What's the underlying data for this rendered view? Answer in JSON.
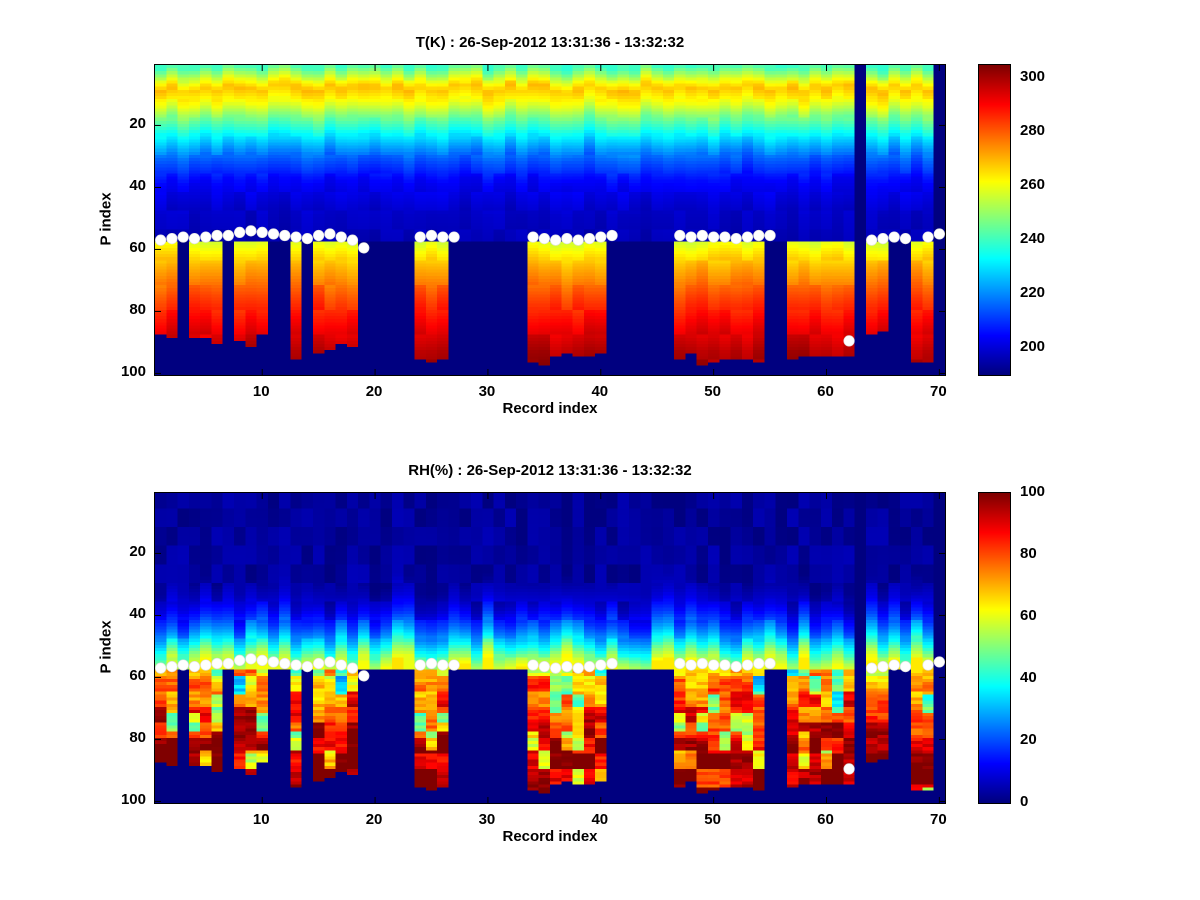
{
  "colors": {
    "dot": "#ffffff",
    "axis": "#000000",
    "background": "#ffffff",
    "masked": "#00007f"
  },
  "chart_data": [
    {
      "type": "heatmap",
      "title": "T(K) : 26-Sep-2012 13:31:36 - 13:32:32",
      "xlabel": "Record index",
      "ylabel": "P index",
      "x_range": [
        1,
        70
      ],
      "y_range": [
        1,
        100
      ],
      "x_ticks": [
        10,
        20,
        30,
        40,
        50,
        60,
        70
      ],
      "y_ticks": [
        20,
        40,
        60,
        80,
        100
      ],
      "y_axis_reversed": true,
      "colormap": "jet",
      "colorbar": {
        "min": 190,
        "max": 305,
        "ticks": [
          200,
          220,
          240,
          260,
          280,
          300
        ]
      },
      "boundary_p": 57,
      "upper_profile": [
        [
          1,
          240
        ],
        [
          5,
          258
        ],
        [
          8,
          269
        ],
        [
          13,
          260
        ],
        [
          18,
          245
        ],
        [
          24,
          230
        ],
        [
          30,
          216
        ],
        [
          38,
          204
        ],
        [
          48,
          198
        ],
        [
          57,
          196
        ]
      ],
      "lower_profile": [
        [
          58,
          259
        ],
        [
          65,
          270
        ],
        [
          75,
          282
        ],
        [
          85,
          292
        ],
        [
          93,
          299
        ],
        [
          97,
          301
        ]
      ],
      "segments": [
        {
          "start": 1,
          "end": 2,
          "bottom": 88
        },
        {
          "start": 4,
          "end": 6,
          "bottom": 90
        },
        {
          "start": 8,
          "end": 10,
          "bottom": 89
        },
        {
          "start": 13,
          "end": 13,
          "bottom": 95
        },
        {
          "start": 15,
          "end": 18,
          "bottom": 92
        },
        {
          "start": 24,
          "end": 26,
          "bottom": 95
        },
        {
          "start": 34,
          "end": 40,
          "bottom": 95
        },
        {
          "start": 47,
          "end": 54,
          "bottom": 95
        },
        {
          "start": 57,
          "end": 62,
          "bottom": 95
        },
        {
          "start": 64,
          "end": 65,
          "bottom": 86
        },
        {
          "start": 68,
          "end": 69,
          "bottom": 95
        }
      ],
      "missing_records": [
        63,
        70
      ],
      "dots": [
        [
          1,
          57
        ],
        [
          2,
          56.5
        ],
        [
          3,
          56
        ],
        [
          4,
          56.5
        ],
        [
          5,
          56
        ],
        [
          6,
          55.5
        ],
        [
          7,
          55.5
        ],
        [
          8,
          54.5
        ],
        [
          9,
          54
        ],
        [
          10,
          54.5
        ],
        [
          11,
          55
        ],
        [
          12,
          55.5
        ],
        [
          13,
          56
        ],
        [
          14,
          56.5
        ],
        [
          15,
          55.5
        ],
        [
          16,
          55
        ],
        [
          17,
          56
        ],
        [
          18,
          57
        ],
        [
          19,
          59.5
        ],
        [
          24,
          56
        ],
        [
          25,
          55.5
        ],
        [
          26,
          56
        ],
        [
          27,
          56
        ],
        [
          34,
          56
        ],
        [
          35,
          56.5
        ],
        [
          36,
          57
        ],
        [
          37,
          56.5
        ],
        [
          38,
          57
        ],
        [
          39,
          56.5
        ],
        [
          40,
          56
        ],
        [
          41,
          55.5
        ],
        [
          47,
          55.5
        ],
        [
          48,
          56
        ],
        [
          49,
          55.5
        ],
        [
          50,
          56
        ],
        [
          51,
          56
        ],
        [
          52,
          56.5
        ],
        [
          53,
          56
        ],
        [
          54,
          55.5
        ],
        [
          55,
          55.5
        ],
        [
          62,
          89.5
        ],
        [
          64,
          57
        ],
        [
          65,
          56.5
        ],
        [
          66,
          56
        ],
        [
          67,
          56.5
        ],
        [
          69,
          56
        ],
        [
          70,
          55
        ]
      ]
    },
    {
      "type": "heatmap",
      "title": "RH(%) : 26-Sep-2012 13:31:36 - 13:32:32",
      "xlabel": "Record index",
      "ylabel": "P index",
      "x_range": [
        1,
        70
      ],
      "y_range": [
        1,
        100
      ],
      "x_ticks": [
        10,
        20,
        30,
        40,
        50,
        60,
        70
      ],
      "y_ticks": [
        20,
        40,
        60,
        80,
        100
      ],
      "y_axis_reversed": true,
      "colormap": "jet",
      "colorbar": {
        "min": 0,
        "max": 100,
        "ticks": [
          0,
          20,
          40,
          60,
          80,
          100
        ]
      },
      "boundary_p": 57,
      "upper_profile": [
        [
          1,
          2
        ],
        [
          30,
          3
        ],
        [
          36,
          8
        ],
        [
          42,
          18
        ],
        [
          46,
          28
        ],
        [
          50,
          40
        ],
        [
          53,
          52
        ],
        [
          57,
          63
        ]
      ],
      "lower_profile": [
        [
          58,
          68
        ],
        [
          62,
          73
        ],
        [
          70,
          82
        ],
        [
          78,
          90
        ],
        [
          85,
          96
        ],
        [
          92,
          100
        ]
      ],
      "segments": [
        {
          "start": 1,
          "end": 2,
          "bottom": 88
        },
        {
          "start": 4,
          "end": 6,
          "bottom": 90
        },
        {
          "start": 8,
          "end": 10,
          "bottom": 89
        },
        {
          "start": 13,
          "end": 13,
          "bottom": 95
        },
        {
          "start": 15,
          "end": 18,
          "bottom": 92
        },
        {
          "start": 24,
          "end": 26,
          "bottom": 95
        },
        {
          "start": 34,
          "end": 40,
          "bottom": 95
        },
        {
          "start": 47,
          "end": 54,
          "bottom": 95
        },
        {
          "start": 57,
          "end": 62,
          "bottom": 95
        },
        {
          "start": 64,
          "end": 65,
          "bottom": 86
        },
        {
          "start": 68,
          "end": 69,
          "bottom": 95
        }
      ],
      "missing_records": [
        63,
        70
      ],
      "dots": [
        [
          1,
          57
        ],
        [
          2,
          56.5
        ],
        [
          3,
          56
        ],
        [
          4,
          56.5
        ],
        [
          5,
          56
        ],
        [
          6,
          55.5
        ],
        [
          7,
          55.5
        ],
        [
          8,
          54.5
        ],
        [
          9,
          54
        ],
        [
          10,
          54.5
        ],
        [
          11,
          55
        ],
        [
          12,
          55.5
        ],
        [
          13,
          56
        ],
        [
          14,
          56.5
        ],
        [
          15,
          55.5
        ],
        [
          16,
          55
        ],
        [
          17,
          56
        ],
        [
          18,
          57
        ],
        [
          19,
          59.5
        ],
        [
          24,
          56
        ],
        [
          25,
          55.5
        ],
        [
          26,
          56
        ],
        [
          27,
          56
        ],
        [
          34,
          56
        ],
        [
          35,
          56.5
        ],
        [
          36,
          57
        ],
        [
          37,
          56.5
        ],
        [
          38,
          57
        ],
        [
          39,
          56.5
        ],
        [
          40,
          56
        ],
        [
          41,
          55.5
        ],
        [
          47,
          55.5
        ],
        [
          48,
          56
        ],
        [
          49,
          55.5
        ],
        [
          50,
          56
        ],
        [
          51,
          56
        ],
        [
          52,
          56.5
        ],
        [
          53,
          56
        ],
        [
          54,
          55.5
        ],
        [
          55,
          55.5
        ],
        [
          62,
          89.5
        ],
        [
          64,
          57
        ],
        [
          65,
          56.5
        ],
        [
          66,
          56
        ],
        [
          67,
          56.5
        ],
        [
          69,
          56
        ],
        [
          70,
          55
        ]
      ]
    }
  ]
}
